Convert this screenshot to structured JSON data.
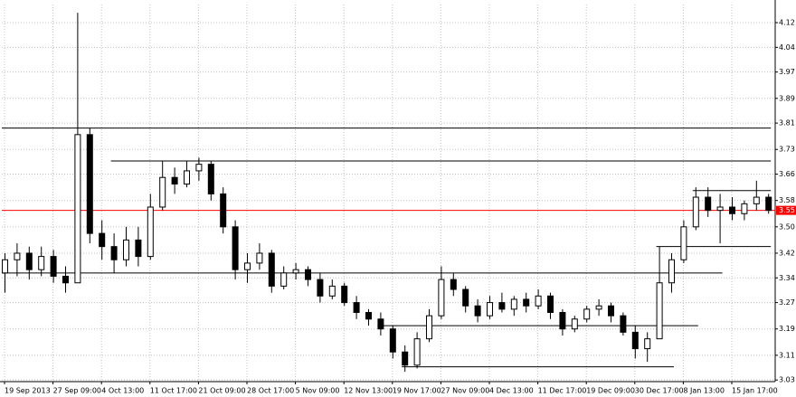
{
  "chart_data": {
    "type": "candlestick",
    "categories": [
      "19 Sep 2013",
      null,
      null,
      null,
      "27 Sep 09:00",
      null,
      null,
      null,
      "4 Oct 13:00",
      null,
      null,
      null,
      "11 Oct 17:00",
      null,
      null,
      null,
      "21 Oct 09:00",
      null,
      null,
      null,
      "28 Oct 17:00",
      null,
      null,
      null,
      "5 Nov 09:00",
      null,
      null,
      null,
      "12 Nov 13:00",
      null,
      null,
      null,
      "19 Nov 17:00",
      null,
      null,
      null,
      "27 Nov 09:00",
      null,
      null,
      null,
      "4 Dec 13:00",
      null,
      null,
      null,
      "11 Dec 17:00",
      null,
      null,
      null,
      "19 Dec 09:00",
      null,
      null,
      null,
      "30 Dec 17:00",
      null,
      null,
      null,
      "8 Jan 13:00",
      null,
      null,
      null,
      "15 Jan 17:00",
      null,
      null,
      null
    ],
    "open": [
      3.36,
      3.4,
      3.42,
      3.37,
      3.41,
      3.35,
      3.33,
      3.78,
      3.48,
      3.44,
      3.4,
      3.46,
      3.41,
      3.56,
      3.65,
      3.63,
      3.67,
      3.69,
      3.6,
      3.5,
      3.37,
      3.39,
      3.42,
      3.32,
      3.36,
      3.37,
      3.34,
      3.29,
      3.32,
      3.27,
      3.24,
      3.22,
      3.19,
      3.12,
      3.08,
      3.16,
      3.23,
      3.34,
      3.31,
      3.26,
      3.23,
      3.27,
      3.25,
      3.28,
      3.26,
      3.29,
      3.24,
      3.19,
      3.22,
      3.25,
      3.26,
      3.23,
      3.18,
      3.13,
      3.16,
      3.33,
      3.4,
      3.5,
      3.59,
      3.55,
      3.56,
      3.54,
      3.57,
      3.59
    ],
    "high": [
      3.42,
      3.45,
      3.44,
      3.44,
      3.43,
      3.38,
      4.15,
      3.8,
      3.52,
      3.48,
      3.5,
      3.5,
      3.6,
      3.7,
      3.68,
      3.7,
      3.71,
      3.7,
      3.62,
      3.52,
      3.42,
      3.45,
      3.43,
      3.38,
      3.39,
      3.38,
      3.36,
      3.34,
      3.33,
      3.29,
      3.25,
      3.24,
      3.2,
      3.14,
      3.18,
      3.25,
      3.38,
      3.36,
      3.32,
      3.28,
      3.29,
      3.3,
      3.29,
      3.3,
      3.31,
      3.3,
      3.25,
      3.23,
      3.26,
      3.28,
      3.27,
      3.24,
      3.2,
      3.18,
      3.44,
      3.42,
      3.52,
      3.62,
      3.62,
      3.6,
      3.59,
      3.58,
      3.64,
      3.6
    ],
    "low": [
      3.3,
      3.35,
      3.34,
      3.35,
      3.33,
      3.3,
      3.33,
      3.45,
      3.4,
      3.36,
      3.38,
      3.38,
      3.4,
      3.55,
      3.6,
      3.62,
      3.64,
      3.58,
      3.48,
      3.34,
      3.33,
      3.37,
      3.3,
      3.31,
      3.34,
      3.32,
      3.27,
      3.28,
      3.26,
      3.22,
      3.2,
      3.17,
      3.1,
      3.06,
      3.07,
      3.15,
      3.22,
      3.29,
      3.24,
      3.21,
      3.22,
      3.24,
      3.23,
      3.24,
      3.25,
      3.22,
      3.17,
      3.18,
      3.21,
      3.23,
      3.21,
      3.17,
      3.1,
      3.09,
      3.16,
      3.3,
      3.39,
      3.49,
      3.53,
      3.45,
      3.52,
      3.52,
      3.55,
      3.54
    ],
    "close": [
      3.4,
      3.42,
      3.37,
      3.41,
      3.35,
      3.33,
      3.78,
      3.48,
      3.44,
      3.4,
      3.46,
      3.41,
      3.56,
      3.65,
      3.63,
      3.67,
      3.69,
      3.6,
      3.5,
      3.37,
      3.39,
      3.42,
      3.32,
      3.36,
      3.37,
      3.34,
      3.29,
      3.32,
      3.27,
      3.24,
      3.22,
      3.19,
      3.12,
      3.08,
      3.16,
      3.23,
      3.34,
      3.31,
      3.26,
      3.23,
      3.27,
      3.25,
      3.28,
      3.26,
      3.29,
      3.24,
      3.19,
      3.22,
      3.25,
      3.26,
      3.23,
      3.18,
      3.13,
      3.16,
      3.33,
      3.4,
      3.5,
      3.59,
      3.55,
      3.56,
      3.54,
      3.57,
      3.59,
      3.55
    ],
    "ylim": [
      3.03,
      4.175
    ],
    "yticks": [
      {
        "value": 3.035,
        "label": "3.03"
      },
      3.11,
      3.19,
      3.27,
      {
        "value": 3.345,
        "label": "3.34"
      },
      3.42,
      {
        "value": 3.5,
        "label": "3.50"
      },
      3.58,
      3.66,
      {
        "value": 3.735,
        "label": "3.73"
      },
      {
        "value": 3.815,
        "label": "3.81"
      },
      3.89,
      3.97,
      {
        "value": 4.045,
        "label": "4.04"
      },
      4.12
    ],
    "grid": true,
    "current_price": 3.55,
    "current_price_color": "#ff0000",
    "levels": [
      {
        "value": 3.8,
        "start": 0,
        "end": 63
      },
      {
        "value": 3.7,
        "start": 9,
        "end": 63
      },
      {
        "value": 3.36,
        "start": 0,
        "end": 59
      },
      {
        "value": 3.2,
        "start": 31,
        "end": 57
      },
      {
        "value": 3.075,
        "start": 33,
        "end": 55
      },
      {
        "value": 3.44,
        "start": 54,
        "end": 63
      },
      {
        "value": 3.61,
        "start": 57,
        "end": 63
      }
    ]
  }
}
